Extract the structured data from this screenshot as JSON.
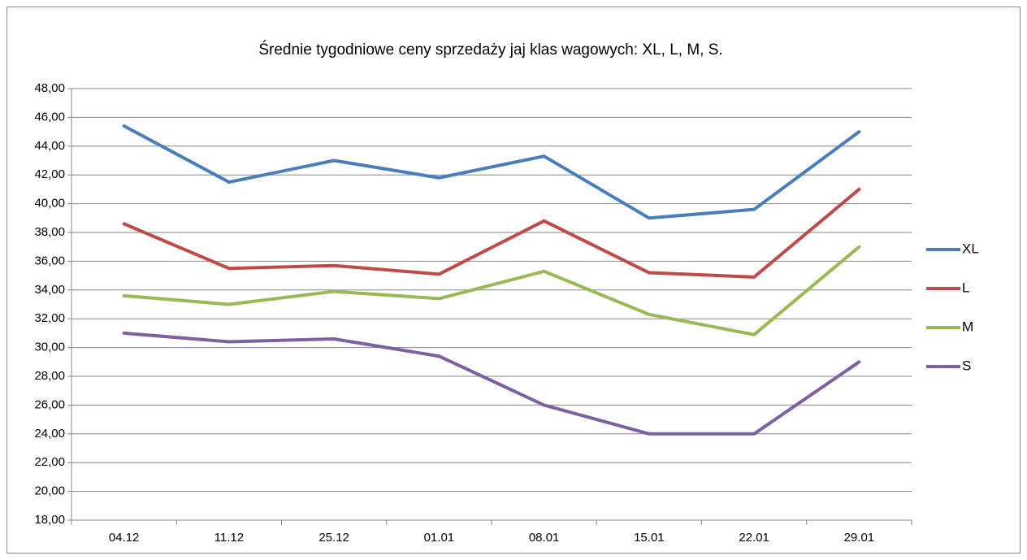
{
  "chart_data": {
    "type": "line",
    "title": "Średnie tygodniowe ceny sprzedaży jaj klas wagowych: XL, L, M, S.",
    "categories": [
      "04.12",
      "11.12",
      "25.12",
      "01.01",
      "08.01",
      "15.01",
      "22.01",
      "29.01"
    ],
    "series": [
      {
        "name": "XL",
        "color": "#4a7ebb",
        "values": [
          45.4,
          41.5,
          43.0,
          41.8,
          43.3,
          39.0,
          39.6,
          45.0
        ]
      },
      {
        "name": "L",
        "color": "#be4b48",
        "values": [
          38.6,
          35.5,
          35.7,
          35.1,
          38.8,
          35.2,
          34.9,
          41.0
        ]
      },
      {
        "name": "M",
        "color": "#98b954",
        "values": [
          33.6,
          33.0,
          33.9,
          33.4,
          35.3,
          32.3,
          30.9,
          37.0
        ]
      },
      {
        "name": "S",
        "color": "#7d60a0",
        "values": [
          31.0,
          30.4,
          30.6,
          29.4,
          26.0,
          24.0,
          24.0,
          29.0
        ]
      }
    ],
    "ylim": [
      18,
      48
    ],
    "yticks": [
      {
        "value": 18,
        "label": "18,00"
      },
      {
        "value": 20,
        "label": "20,00"
      },
      {
        "value": 22,
        "label": "22,00"
      },
      {
        "value": 24,
        "label": "24,00"
      },
      {
        "value": 26,
        "label": "26,00"
      },
      {
        "value": 28,
        "label": "28,00"
      },
      {
        "value": 30,
        "label": "30,00"
      },
      {
        "value": 32,
        "label": "32,00"
      },
      {
        "value": 34,
        "label": "34,00"
      },
      {
        "value": 36,
        "label": "36,00"
      },
      {
        "value": 38,
        "label": "38,00"
      },
      {
        "value": 40,
        "label": "40,00"
      },
      {
        "value": 42,
        "label": "42,00"
      },
      {
        "value": 44,
        "label": "44,00"
      },
      {
        "value": 46,
        "label": "46,00"
      },
      {
        "value": 48,
        "label": "48,00"
      }
    ],
    "grid": true,
    "legend": "right"
  }
}
